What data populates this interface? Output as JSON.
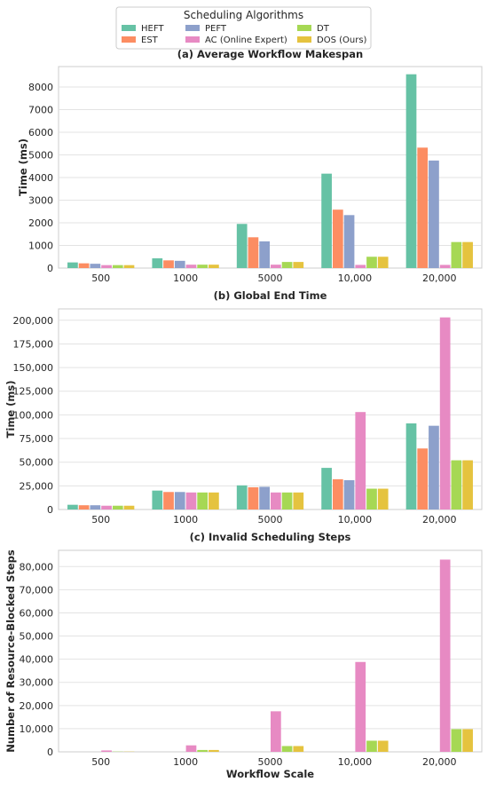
{
  "legend": {
    "title": "Scheduling Algorithms",
    "placement": "top-center"
  },
  "chart_data": [
    {
      "type": "bar",
      "title": "(a) Average Workflow Makespan",
      "xlabel": "",
      "ylabel": "Time (ms)",
      "categories": [
        "500",
        "1000",
        "5000",
        "10,000",
        "20,000"
      ],
      "ylim": [
        0,
        8900
      ],
      "yticks": [
        0,
        1000,
        2000,
        3000,
        4000,
        5000,
        6000,
        7000,
        8000
      ],
      "ytick_labels": [
        "0",
        "1000",
        "2000",
        "3000",
        "4000",
        "5000",
        "6000",
        "7000",
        "8000"
      ],
      "grid": true,
      "series": [
        {
          "name": "HEFT",
          "color": "#66c2a5",
          "values": [
            250,
            430,
            1950,
            4170,
            8560
          ]
        },
        {
          "name": "EST",
          "color": "#fc8d62",
          "values": [
            210,
            340,
            1360,
            2580,
            5320
          ]
        },
        {
          "name": "PEFT",
          "color": "#8da0cb",
          "values": [
            190,
            320,
            1180,
            2340,
            4750
          ]
        },
        {
          "name": "AC (Online Expert)",
          "color": "#e78ac3",
          "values": [
            130,
            150,
            150,
            140,
            140
          ]
        },
        {
          "name": "DT",
          "color": "#a6d854",
          "values": [
            130,
            150,
            270,
            500,
            1150
          ]
        },
        {
          "name": "DOS (Ours)",
          "color": "#e5c33f",
          "values": [
            130,
            150,
            270,
            500,
            1150
          ]
        }
      ]
    },
    {
      "type": "bar",
      "title": "(b) Global End Time",
      "xlabel": "",
      "ylabel": "Time (ms)",
      "categories": [
        "500",
        "1000",
        "5000",
        "10,000",
        "20,000"
      ],
      "ylim": [
        0,
        212000
      ],
      "yticks": [
        0,
        25000,
        50000,
        75000,
        100000,
        125000,
        150000,
        175000,
        200000
      ],
      "ytick_labels": [
        "0",
        "25,000",
        "50,000",
        "75,000",
        "100,000",
        "125,000",
        "150,000",
        "175,000",
        "200,000"
      ],
      "grid": true,
      "series": [
        {
          "name": "HEFT",
          "color": "#66c2a5",
          "values": [
            5000,
            20000,
            25500,
            44000,
            91000
          ]
        },
        {
          "name": "EST",
          "color": "#fc8d62",
          "values": [
            4500,
            18500,
            23500,
            32000,
            64500
          ]
        },
        {
          "name": "PEFT",
          "color": "#8da0cb",
          "values": [
            4500,
            18500,
            24000,
            31000,
            88500
          ]
        },
        {
          "name": "AC (Online Expert)",
          "color": "#e78ac3",
          "values": [
            4000,
            18000,
            18000,
            103000,
            203000
          ]
        },
        {
          "name": "DT",
          "color": "#a6d854",
          "values": [
            4000,
            18000,
            18000,
            22000,
            52000
          ]
        },
        {
          "name": "DOS (Ours)",
          "color": "#e5c33f",
          "values": [
            4000,
            18000,
            18000,
            22000,
            52000
          ]
        }
      ]
    },
    {
      "type": "bar",
      "title": "(c) Invalid Scheduling Steps",
      "xlabel": "Workflow Scale",
      "ylabel": "Number of Resource-Blocked Steps",
      "categories": [
        "500",
        "1000",
        "5000",
        "10,000",
        "20,000"
      ],
      "ylim": [
        0,
        87000
      ],
      "yticks": [
        0,
        10000,
        20000,
        30000,
        40000,
        50000,
        60000,
        70000,
        80000
      ],
      "ytick_labels": [
        "0",
        "10,000",
        "20,000",
        "30,000",
        "40,000",
        "50,000",
        "60,000",
        "70,000",
        "80,000"
      ],
      "grid": true,
      "series": [
        {
          "name": "HEFT",
          "color": "#66c2a5",
          "values": [
            0,
            0,
            0,
            0,
            0
          ]
        },
        {
          "name": "EST",
          "color": "#fc8d62",
          "values": [
            0,
            0,
            0,
            0,
            0
          ]
        },
        {
          "name": "PEFT",
          "color": "#8da0cb",
          "values": [
            0,
            0,
            0,
            0,
            0
          ]
        },
        {
          "name": "AC (Online Expert)",
          "color": "#e78ac3",
          "values": [
            600,
            2800,
            17500,
            38800,
            83000
          ]
        },
        {
          "name": "DT",
          "color": "#a6d854",
          "values": [
            100,
            800,
            2500,
            4800,
            9800
          ]
        },
        {
          "name": "DOS (Ours)",
          "color": "#e5c33f",
          "values": [
            100,
            800,
            2500,
            4800,
            9800
          ]
        }
      ]
    }
  ]
}
